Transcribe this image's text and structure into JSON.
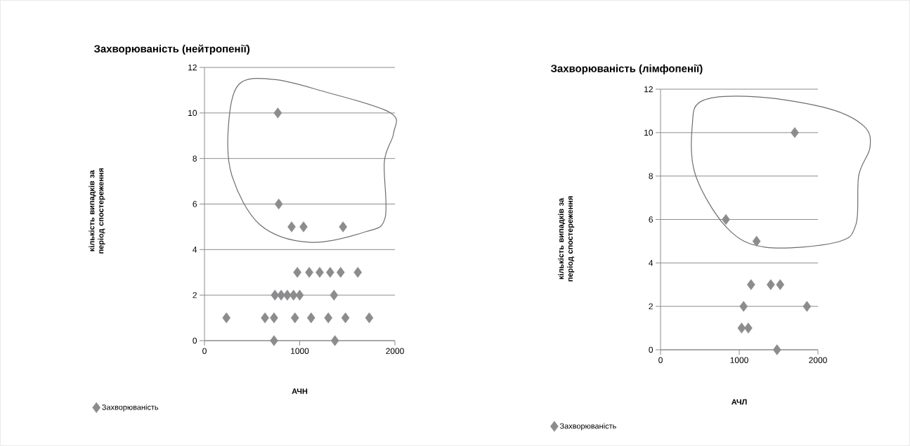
{
  "chart_data": [
    {
      "type": "scatter",
      "title": "Захворюваність (нейтропенії)",
      "xlabel": "АЧН",
      "ylabel": "кількість випадків за період спостереження",
      "xlim": [
        0,
        2000
      ],
      "xticks": [
        0,
        1000,
        2000
      ],
      "ylim": [
        0,
        12
      ],
      "yticks": [
        0,
        2,
        4,
        6,
        8,
        10,
        12
      ],
      "grid": "y",
      "legend": "bottom left",
      "marker": "diamond",
      "series": [
        {
          "name": "Захворюваність",
          "color": "#8c8c8e",
          "x": [
            770,
            780,
            915,
            1040,
            1455,
            975,
            1100,
            1210,
            1320,
            1430,
            1610,
            740,
            805,
            870,
            935,
            1000,
            1360,
            230,
            635,
            730,
            950,
            1120,
            1300,
            1480,
            1730,
            730,
            1370
          ],
          "values": [
            10,
            6,
            5,
            5,
            5,
            3,
            3,
            3,
            3,
            3,
            3,
            2,
            2,
            2,
            2,
            2,
            2,
            1,
            1,
            1,
            1,
            1,
            1,
            1,
            1,
            0,
            0
          ]
        }
      ]
    },
    {
      "type": "scatter",
      "title": "Захворюваність (лімфопенії)",
      "xlabel": "АЧЛ",
      "ylabel": "кількість випадків за період спостереження",
      "xlim": [
        0,
        2000
      ],
      "xticks": [
        0,
        1000,
        2000
      ],
      "ylim": [
        0,
        12
      ],
      "yticks": [
        0,
        2,
        4,
        6,
        8,
        10,
        12
      ],
      "grid": "y",
      "legend": "bottom left",
      "marker": "diamond",
      "series": [
        {
          "name": "Захворюваність",
          "color": "#8c8c8e",
          "x": [
            1705,
            830,
            1220,
            1150,
            1400,
            1520,
            1055,
            1860,
            1030,
            1115,
            1480
          ],
          "values": [
            10,
            6,
            5,
            3,
            3,
            3,
            2,
            2,
            1,
            1,
            0
          ]
        }
      ]
    }
  ]
}
